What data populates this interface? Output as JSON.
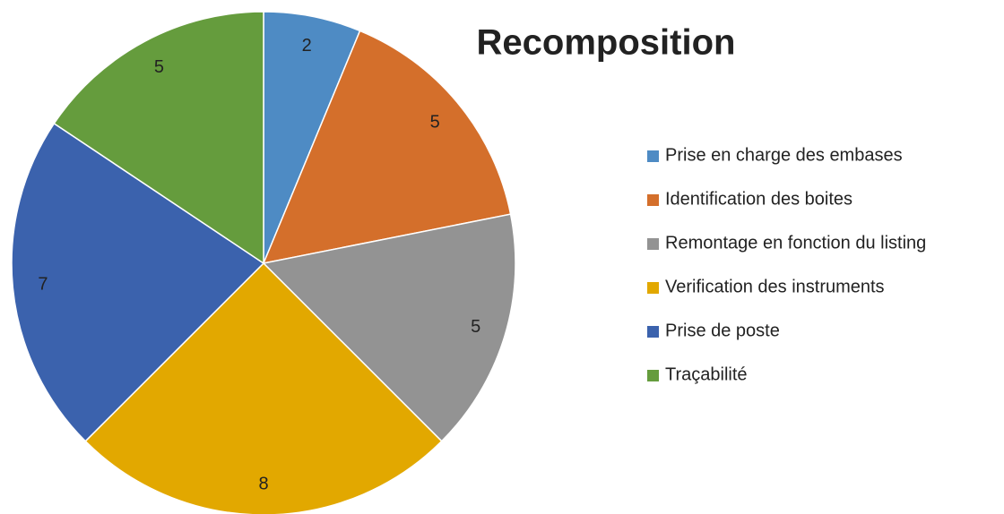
{
  "chart_data": {
    "type": "pie",
    "title": "Recomposition",
    "categories": [
      "Prise en charge des embases",
      "Identification des boites",
      "Remontage en fonction du listing",
      "Verification des instruments",
      "Prise de poste",
      "Traçabilité"
    ],
    "values": [
      2,
      5,
      5,
      8,
      7,
      5
    ],
    "colors": [
      "#4e8bc4",
      "#d46f2b",
      "#939393",
      "#e2a800",
      "#3b62ad",
      "#659c3d"
    ],
    "legend": "right"
  }
}
